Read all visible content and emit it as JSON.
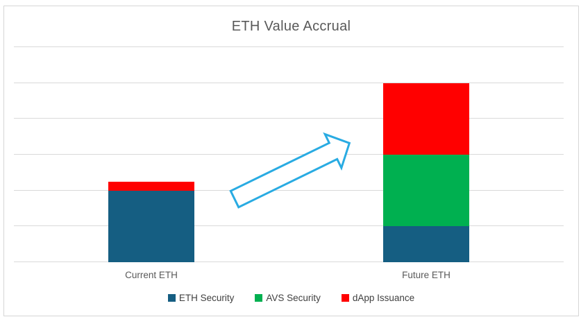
{
  "chart_data": {
    "type": "bar",
    "stacked": true,
    "title": "ETH Value Accrual",
    "categories": [
      "Current ETH",
      "Future ETH"
    ],
    "series": [
      {
        "name": "ETH Security",
        "color": "#155E82",
        "values": [
          2,
          1
        ]
      },
      {
        "name": "AVS Security",
        "color": "#00B050",
        "values": [
          0,
          2
        ]
      },
      {
        "name": "dApp Issuance",
        "color": "#FF0000",
        "values": [
          0.25,
          2
        ]
      }
    ],
    "xlabel": "",
    "ylabel": "",
    "ylim": [
      0,
      6
    ],
    "gridline_step": 1,
    "grid": "horizontal-only",
    "gridline_color": "#D9D9D9",
    "y_tick_labels": "none",
    "legend_position": "bottom"
  },
  "annotation_arrow": {
    "meaning": "growth from Current ETH to Future ETH",
    "direction": "up-right",
    "stroke_color": "#29ABE2",
    "fill_color": "#FFFFFF"
  },
  "style_colors": {
    "frame_border": "#D6D6D6",
    "title_text": "#595959",
    "axis_text": "#595959",
    "legend_text": "#404040",
    "background": "#FFFFFF"
  }
}
